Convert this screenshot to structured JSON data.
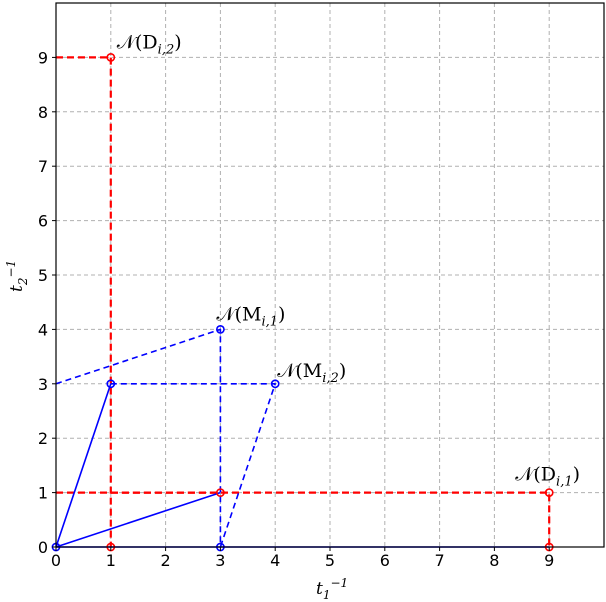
{
  "chart_data": {
    "type": "line",
    "xlabel": "t1^-1",
    "ylabel": "t2^-1",
    "xlim": [
      0,
      10
    ],
    "ylim": [
      0,
      10
    ],
    "x_ticks": [
      "0",
      "1",
      "2",
      "3",
      "4",
      "5",
      "6",
      "7",
      "8",
      "9"
    ],
    "y_ticks": [
      "0",
      "1",
      "2",
      "3",
      "4",
      "5",
      "6",
      "7",
      "8",
      "9"
    ],
    "grid": true,
    "series": [
      {
        "color": "#ff0000",
        "style": "dashed",
        "marker": "circle",
        "points": [
          [
            0,
            9
          ],
          [
            1,
            9
          ],
          [
            1,
            0
          ]
        ]
      },
      {
        "color": "#ff0000",
        "style": "dashed",
        "marker": "circle",
        "points": [
          [
            0,
            1
          ],
          [
            9,
            1
          ],
          [
            9,
            0
          ]
        ]
      },
      {
        "color": "#ff0000",
        "style": "dashed",
        "marker": "none",
        "points": [
          [
            1,
            1
          ],
          [
            3,
            1
          ]
        ]
      },
      {
        "color": "#0000ff",
        "style": "solid",
        "marker": "none",
        "points": [
          [
            0,
            0
          ],
          [
            1,
            3
          ]
        ]
      },
      {
        "color": "#0000ff",
        "style": "solid",
        "marker": "none",
        "points": [
          [
            0,
            0
          ],
          [
            3,
            1
          ]
        ]
      },
      {
        "color": "#0000ff",
        "style": "dashed",
        "marker": "circle",
        "points": [
          [
            0,
            3
          ],
          [
            3,
            4
          ],
          [
            3,
            0
          ]
        ]
      },
      {
        "color": "#0000ff",
        "style": "dashed",
        "marker": "circle",
        "points": [
          [
            1,
            3
          ],
          [
            4,
            3
          ],
          [
            3,
            0
          ]
        ]
      },
      {
        "color": "#0000ff",
        "style": "solid",
        "marker": "none",
        "points": [
          [
            0,
            0
          ],
          [
            9,
            0
          ]
        ]
      }
    ],
    "markers": [
      {
        "x": 1,
        "y": 9,
        "color": "#ff0000"
      },
      {
        "x": 9,
        "y": 1,
        "color": "#ff0000"
      },
      {
        "x": 1,
        "y": 0,
        "color": "#ff0000"
      },
      {
        "x": 9,
        "y": 0,
        "color": "#ff0000"
      },
      {
        "x": 3,
        "y": 1,
        "color": "#ff0000"
      },
      {
        "x": 3,
        "y": 4,
        "color": "#0000ff"
      },
      {
        "x": 4,
        "y": 3,
        "color": "#0000ff"
      },
      {
        "x": 1,
        "y": 3,
        "color": "#0000ff"
      },
      {
        "x": 3,
        "y": 0,
        "color": "#0000ff"
      },
      {
        "x": 0,
        "y": 0,
        "color": "#0000ff"
      }
    ],
    "annotations": [
      {
        "main": "𝒩(D",
        "sub": "i,2",
        "close": ")",
        "x": 1,
        "y": 9
      },
      {
        "main": "𝒩(M",
        "sub": "i,1",
        "close": ")",
        "x": 3,
        "y": 4
      },
      {
        "main": "𝒩(M",
        "sub": "i,2",
        "close": ")",
        "x": 4,
        "y": 3
      },
      {
        "main": "𝒩(D",
        "sub": "i,1",
        "close": ")",
        "x": 9,
        "y": 1
      }
    ]
  }
}
